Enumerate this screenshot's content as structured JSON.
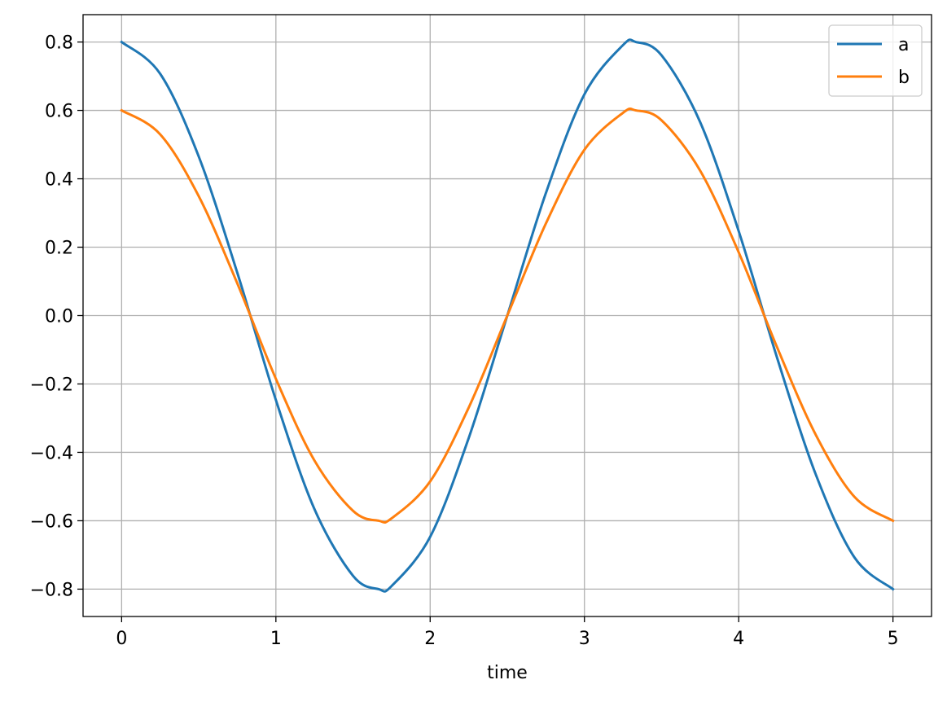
{
  "chart_data": {
    "type": "line",
    "title": "",
    "xlabel": "time",
    "ylabel": "",
    "xlim": [
      -0.25,
      5.25
    ],
    "ylim": [
      -0.88,
      0.88
    ],
    "x_ticks": [
      0,
      1,
      2,
      3,
      4,
      5
    ],
    "x_tick_labels": [
      "0",
      "1",
      "2",
      "3",
      "4",
      "5"
    ],
    "y_ticks": [
      0.8,
      0.6,
      0.4,
      0.2,
      0.0,
      -0.2,
      -0.4,
      -0.6,
      -0.8
    ],
    "y_tick_labels": [
      "0.8",
      "0.6",
      "0.4",
      "0.2",
      "0.0",
      "−0.2",
      "−0.4",
      "−0.6",
      "−0.8"
    ],
    "grid": true,
    "legend_position": "top-right",
    "series": [
      {
        "name": "a",
        "color": "#1f77b4",
        "x": [
          0,
          0.25,
          0.5,
          0.75,
          1.0,
          1.25,
          1.5,
          1.667,
          1.75,
          2.0,
          2.25,
          2.5,
          2.75,
          3.0,
          3.25,
          3.333,
          3.5,
          3.75,
          4.0,
          4.25,
          4.5,
          4.75,
          5.0
        ],
        "y": [
          0.8,
          0.707,
          0.465,
          0.125,
          -0.247,
          -0.566,
          -0.761,
          -0.8,
          -0.791,
          -0.647,
          -0.358,
          0.0,
          0.358,
          0.647,
          0.791,
          0.8,
          0.761,
          0.566,
          0.247,
          -0.125,
          -0.465,
          -0.707,
          -0.8
        ]
      },
      {
        "name": "b",
        "color": "#ff7f0e",
        "x": [
          0,
          0.25,
          0.5,
          0.75,
          1.0,
          1.25,
          1.5,
          1.667,
          1.75,
          2.0,
          2.25,
          2.5,
          2.75,
          3.0,
          3.25,
          3.333,
          3.5,
          3.75,
          4.0,
          4.25,
          4.5,
          4.75,
          5.0
        ],
        "y": [
          0.6,
          0.53,
          0.349,
          0.094,
          -0.185,
          -0.424,
          -0.571,
          -0.6,
          -0.593,
          -0.485,
          -0.269,
          0.0,
          0.269,
          0.485,
          0.593,
          0.6,
          0.571,
          0.424,
          0.185,
          -0.094,
          -0.349,
          -0.53,
          -0.6
        ]
      }
    ]
  }
}
